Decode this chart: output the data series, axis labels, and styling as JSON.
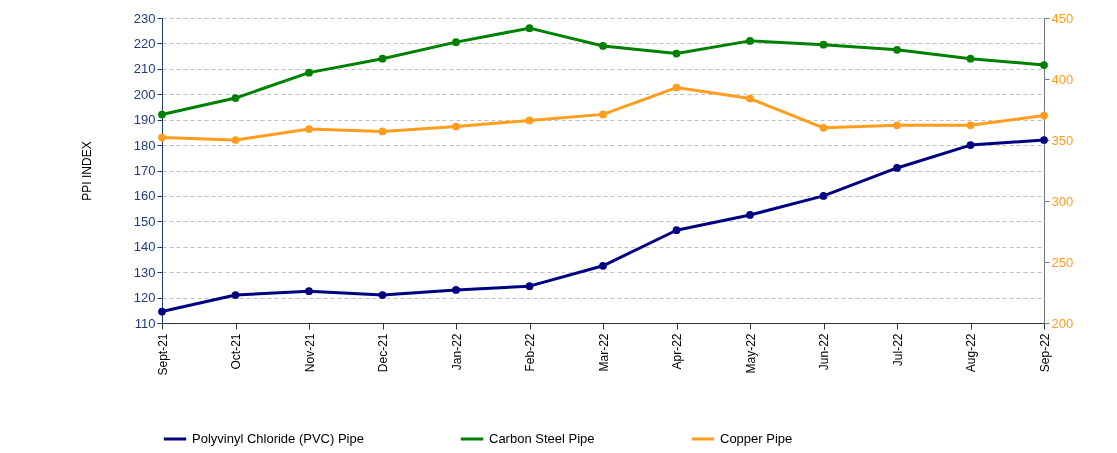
{
  "chart_data": {
    "type": "line",
    "ylabel": "PPI INDEX",
    "categories": [
      "Sept-21",
      "Oct-21",
      "Nov-21",
      "Dec-21",
      "Jan-22",
      "Feb-22",
      "Mar-22",
      "Apr-22",
      "May-22",
      "Jun-22",
      "Jul-22",
      "Aug-22",
      "Sep-22"
    ],
    "series": [
      {
        "name": "Polyvinyl Chloride (PVC) Pipe",
        "color": "#000080",
        "values": [
          114.5,
          121,
          122.5,
          121,
          123,
          124.5,
          132.5,
          146.5,
          152.5,
          160,
          171,
          180,
          182
        ]
      },
      {
        "name": "Carbon Steel Pipe",
        "color": "#008000",
        "values": [
          192,
          198.5,
          208.5,
          214,
          220.5,
          226,
          219,
          216,
          221,
          219.5,
          217.5,
          214,
          211.5
        ]
      },
      {
        "name": "Copper Pipe",
        "color": "#ff9d1f",
        "axis": "y2",
        "values": [
          352,
          350,
          359,
          357,
          361,
          366,
          371,
          393,
          384,
          360,
          362,
          362,
          370
        ]
      }
    ],
    "ylim": [
      110,
      230
    ],
    "yticks": [
      110,
      120,
      130,
      140,
      150,
      160,
      170,
      180,
      190,
      200,
      210,
      220,
      230
    ],
    "y2lim": [
      200,
      450
    ],
    "y2ticks": [
      200,
      250,
      300,
      350,
      400,
      450
    ],
    "grid": "y",
    "legend": "bottom",
    "marker": "circle",
    "line_style": "solid"
  }
}
